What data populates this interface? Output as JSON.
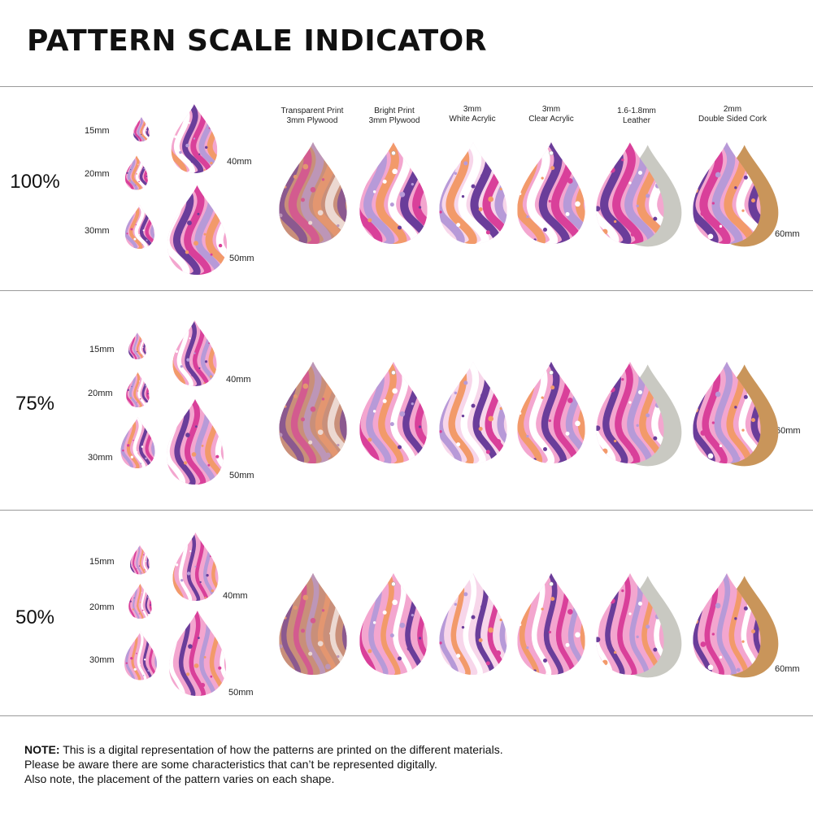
{
  "title": "PATTERN SCALE INDICATOR",
  "sections": [
    {
      "percent": "100%"
    },
    {
      "percent": "75%"
    },
    {
      "percent": "50%"
    }
  ],
  "sizes": {
    "s15": "15mm",
    "s20": "20mm",
    "s30": "30mm",
    "s40": "40mm",
    "s50": "50mm",
    "s60": "60mm"
  },
  "materials": [
    {
      "line1": "Transparent Print",
      "line2": "3mm Plywood"
    },
    {
      "line1": "Bright Print",
      "line2": "3mm Plywood"
    },
    {
      "line1": "3mm",
      "line2": "White Acrylic"
    },
    {
      "line1": "3mm",
      "line2": "Clear Acrylic"
    },
    {
      "line1": "1.6-1.8mm",
      "line2": "Leather"
    },
    {
      "line1": "2mm",
      "line2": "Double Sided Cork"
    }
  ],
  "note": {
    "label": "NOTE:",
    "line1": " This is a digital representation of how the patterns are printed on the different materials.",
    "line2": "Please be aware there are some characteristics that can’t be represented digitally.",
    "line3": "Also note, the placement of the pattern varies on each shape."
  },
  "colors": {
    "pink": "#f3a6cf",
    "magenta": "#d9409a",
    "purple": "#6a3d9a",
    "lavender": "#b79ad8",
    "orange": "#f29a6a",
    "wood": "#c9907a",
    "leather": "#c9c9c2",
    "cork": "#c9955a"
  }
}
